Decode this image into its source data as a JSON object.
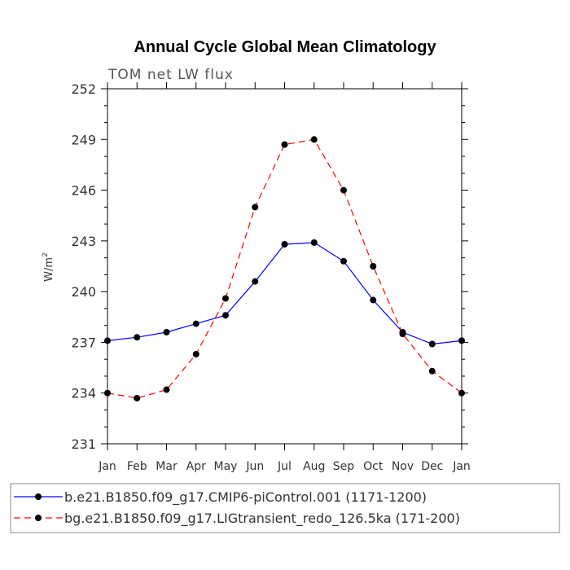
{
  "chart_data": {
    "type": "line",
    "title": "Annual Cycle Global Mean Climatology",
    "subtitle": "TOM net LW flux",
    "xlabel": "",
    "ylabel": "W/m",
    "ylabel_superscript": "2",
    "categories": [
      "Jan",
      "Feb",
      "Mar",
      "Apr",
      "May",
      "Jun",
      "Jul",
      "Aug",
      "Sep",
      "Oct",
      "Nov",
      "Dec",
      "Jan"
    ],
    "ylim": [
      231,
      252
    ],
    "yticks": [
      231,
      234,
      237,
      240,
      243,
      246,
      249,
      252
    ],
    "series": [
      {
        "name": "b.e21.B1850.f09_g17.CMIP6-piControl.001 (1171-1200)",
        "color": "#0000ff",
        "style": "solid",
        "values": [
          237.1,
          237.3,
          237.6,
          238.1,
          238.6,
          240.6,
          242.8,
          242.9,
          241.8,
          239.5,
          237.6,
          236.9,
          237.1
        ]
      },
      {
        "name": "bg.e21.B1850.f09_g17.LIGtransient_redo_126.5ka (171-200)",
        "color": "#ff0000",
        "style": "dashed",
        "values": [
          234.0,
          233.7,
          234.2,
          236.3,
          239.6,
          245.0,
          248.7,
          249.0,
          246.0,
          241.5,
          237.5,
          235.3,
          234.0
        ]
      }
    ],
    "legend_position": "bottom"
  }
}
